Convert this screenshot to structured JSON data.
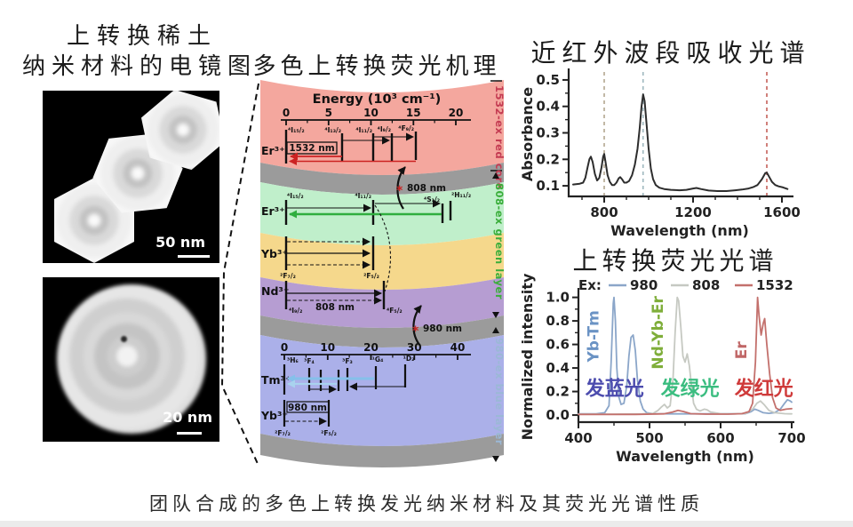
{
  "page": {
    "caption": "团队合成的多色上转换发光纳米材料及其荧光光谱性质"
  },
  "left_panel": {
    "title_line1": "上转换稀土",
    "title_line2": "纳米材料的电镜图",
    "tem_top": {
      "scale_label": "50 nm"
    },
    "tem_bottom": {
      "scale_label": "20 nm"
    }
  },
  "mechanism": {
    "title": "多色上转换荧光机理",
    "energy_axis_label": "Energy (10³ cm⁻¹)",
    "red_ticks": [
      "0",
      "5",
      "10",
      "15",
      "20"
    ],
    "blue_ticks": [
      "0",
      "10",
      "20",
      "30",
      "40"
    ],
    "star": "*",
    "pump_808": "808 nm",
    "pump_980": "980 nm",
    "red": {
      "ion": "Er³⁺",
      "pump": "1532 nm",
      "levels": [
        "⁴I₁₅/₂",
        "⁴I₁₃/₂",
        "⁴I₁₁/₂",
        "⁴I₉/₂",
        "⁴F₉/₂"
      ]
    },
    "green": {
      "ion": "Er³⁺",
      "levels": [
        "⁴I₁₅/₂",
        "⁴I₁₁/₂",
        "⁴S₃/₂",
        "²H₁₁/₂"
      ]
    },
    "yellow": {
      "ion": "Yb³⁺",
      "levels": [
        "²F₇/₂",
        "²F₅/₂"
      ]
    },
    "purple": {
      "ion": "Nd³⁺",
      "pump": "808 nm",
      "levels": [
        "⁴I₉/₂",
        "⁴F₅/₂"
      ]
    },
    "blue": {
      "ion_tm": "Tm³⁺",
      "tm_levels": [
        "³H₆",
        "³F₄",
        "³F₃",
        "¹G₄",
        "¹D₂"
      ],
      "ion_yb": "Yb³⁺",
      "pump": "980 nm",
      "yb_levels": [
        "²F₇/₂",
        "²F₅/₂"
      ]
    },
    "side": {
      "red": "1532-ex red core",
      "green": "808-ex green layer",
      "blue": "980-ex blue layer"
    }
  },
  "chart_data": [
    {
      "type": "line",
      "title": "近红外波段吸收光谱",
      "xlabel": "Wavelength (nm)",
      "ylabel": "Absorbance",
      "xlim": [
        640,
        1640
      ],
      "ylim": [
        0.06,
        0.53
      ],
      "xticks": [
        {
          "v": 800,
          "label": "800"
        },
        {
          "v": 1200,
          "label": "1200"
        },
        {
          "v": 1600,
          "label": "1600"
        }
      ],
      "xminor": [
        700,
        900,
        1000,
        1100,
        1300,
        1400,
        1500
      ],
      "yticks": [
        {
          "v": 0.1,
          "label": "0.1"
        },
        {
          "v": 0.2,
          "label": "0.2"
        },
        {
          "v": 0.3,
          "label": "0.3"
        },
        {
          "v": 0.4,
          "label": "0.4"
        },
        {
          "v": 0.5,
          "label": "0.5"
        }
      ],
      "yminor": [
        0.15,
        0.25,
        0.35,
        0.45
      ],
      "grid": false,
      "legend_position": "none",
      "guides": [
        {
          "x": 800,
          "color": "#b3a68f"
        },
        {
          "x": 975,
          "color": "#9fb8bf"
        },
        {
          "x": 1532,
          "color": "#c4605a"
        }
      ],
      "series": [
        {
          "name": "absorbance",
          "color": "#2d2d2d",
          "width": 2,
          "points": [
            [
              660,
              0.105
            ],
            [
              690,
              0.108
            ],
            [
              705,
              0.112
            ],
            [
              715,
              0.13
            ],
            [
              725,
              0.17
            ],
            [
              733,
              0.2
            ],
            [
              740,
              0.21
            ],
            [
              748,
              0.19
            ],
            [
              758,
              0.145
            ],
            [
              768,
              0.12
            ],
            [
              778,
              0.13
            ],
            [
              788,
              0.17
            ],
            [
              795,
              0.21
            ],
            [
              800,
              0.22
            ],
            [
              806,
              0.19
            ],
            [
              815,
              0.14
            ],
            [
              825,
              0.115
            ],
            [
              835,
              0.103
            ],
            [
              845,
              0.103
            ],
            [
              855,
              0.112
            ],
            [
              865,
              0.128
            ],
            [
              872,
              0.133
            ],
            [
              880,
              0.125
            ],
            [
              890,
              0.112
            ],
            [
              900,
              0.112
            ],
            [
              912,
              0.118
            ],
            [
              925,
              0.14
            ],
            [
              938,
              0.18
            ],
            [
              950,
              0.24
            ],
            [
              960,
              0.32
            ],
            [
              968,
              0.4
            ],
            [
              975,
              0.445
            ],
            [
              982,
              0.42
            ],
            [
              990,
              0.34
            ],
            [
              1000,
              0.24
            ],
            [
              1010,
              0.165
            ],
            [
              1020,
              0.125
            ],
            [
              1032,
              0.103
            ],
            [
              1048,
              0.093
            ],
            [
              1070,
              0.088
            ],
            [
              1100,
              0.085
            ],
            [
              1140,
              0.083
            ],
            [
              1170,
              0.085
            ],
            [
              1200,
              0.09
            ],
            [
              1215,
              0.092
            ],
            [
              1235,
              0.088
            ],
            [
              1270,
              0.082
            ],
            [
              1310,
              0.08
            ],
            [
              1350,
              0.08
            ],
            [
              1390,
              0.083
            ],
            [
              1420,
              0.086
            ],
            [
              1450,
              0.09
            ],
            [
              1470,
              0.095
            ],
            [
              1490,
              0.103
            ],
            [
              1510,
              0.125
            ],
            [
              1525,
              0.148
            ],
            [
              1532,
              0.15
            ],
            [
              1542,
              0.135
            ],
            [
              1555,
              0.115
            ],
            [
              1570,
              0.103
            ],
            [
              1585,
              0.098
            ],
            [
              1605,
              0.094
            ],
            [
              1625,
              0.088
            ]
          ]
        }
      ]
    },
    {
      "type": "line",
      "title": "上转换荧光光谱",
      "xlabel": "Wavelength (nm)",
      "ylabel": "Normalized intensity",
      "xlim": [
        400,
        700
      ],
      "ylim": [
        -0.06,
        1.05
      ],
      "xticks": [
        {
          "v": 400,
          "label": "400"
        },
        {
          "v": 500,
          "label": "500"
        },
        {
          "v": 600,
          "label": "600"
        },
        {
          "v": 700,
          "label": "700"
        }
      ],
      "xminor": [
        450,
        550,
        650
      ],
      "yticks": [
        {
          "v": 0.0,
          "label": "0.0"
        },
        {
          "v": 0.2,
          "label": "0.2"
        },
        {
          "v": 0.4,
          "label": "0.4"
        },
        {
          "v": 0.6,
          "label": "0.6"
        },
        {
          "v": 0.8,
          "label": "0.8"
        },
        {
          "v": 1.0,
          "label": "1.0"
        }
      ],
      "yminor": [
        0.1,
        0.3,
        0.5,
        0.7,
        0.9
      ],
      "grid": false,
      "legend_position": "top",
      "legend": {
        "label": "Ex:",
        "items": [
          {
            "label": "980",
            "color": "#8ba6c9"
          },
          {
            "label": "808",
            "color": "#c6c9c2"
          },
          {
            "label": "1532",
            "color": "#c3706c"
          }
        ]
      },
      "series": [
        {
          "name": "ex-980",
          "color": "#8ba6c9",
          "width": 1.8,
          "points": [
            [
              400,
              0.01
            ],
            [
              425,
              0.01
            ],
            [
              437,
              0.02
            ],
            [
              443,
              0.08
            ],
            [
              446,
              0.45
            ],
            [
              449,
              0.95
            ],
            [
              450,
              1.0
            ],
            [
              452,
              0.8
            ],
            [
              454,
              0.4
            ],
            [
              457,
              0.15
            ],
            [
              460,
              0.09
            ],
            [
              464,
              0.1
            ],
            [
              468,
              0.25
            ],
            [
              471,
              0.5
            ],
            [
              474,
              0.66
            ],
            [
              477,
              0.68
            ],
            [
              480,
              0.55
            ],
            [
              483,
              0.3
            ],
            [
              487,
              0.12
            ],
            [
              491,
              0.05
            ],
            [
              496,
              0.02
            ],
            [
              505,
              0.012
            ],
            [
              530,
              0.01
            ],
            [
              570,
              0.01
            ],
            [
              610,
              0.01
            ],
            [
              635,
              0.012
            ],
            [
              643,
              0.03
            ],
            [
              648,
              0.05
            ],
            [
              653,
              0.04
            ],
            [
              660,
              0.02
            ],
            [
              668,
              0.015
            ],
            [
              676,
              0.02
            ],
            [
              684,
              0.05
            ],
            [
              690,
              0.1
            ],
            [
              694,
              0.13
            ],
            [
              698,
              0.12
            ],
            [
              700,
              0.11
            ]
          ]
        },
        {
          "name": "ex-808",
          "color": "#c6c9c2",
          "width": 1.8,
          "points": [
            [
              400,
              0.008
            ],
            [
              450,
              0.008
            ],
            [
              490,
              0.01
            ],
            [
              505,
              0.015
            ],
            [
              512,
              0.04
            ],
            [
              517,
              0.07
            ],
            [
              521,
              0.09
            ],
            [
              525,
              0.06
            ],
            [
              529,
              0.08
            ],
            [
              533,
              0.3
            ],
            [
              536,
              0.7
            ],
            [
              539,
              1.0
            ],
            [
              541,
              0.97
            ],
            [
              544,
              0.75
            ],
            [
              547,
              0.5
            ],
            [
              550,
              0.45
            ],
            [
              553,
              0.52
            ],
            [
              556,
              0.42
            ],
            [
              559,
              0.25
            ],
            [
              562,
              0.1
            ],
            [
              566,
              0.05
            ],
            [
              571,
              0.035
            ],
            [
              577,
              0.05
            ],
            [
              581,
              0.045
            ],
            [
              586,
              0.025
            ],
            [
              600,
              0.012
            ],
            [
              620,
              0.01
            ],
            [
              636,
              0.015
            ],
            [
              645,
              0.05
            ],
            [
              651,
              0.1
            ],
            [
              656,
              0.12
            ],
            [
              661,
              0.09
            ],
            [
              668,
              0.04
            ],
            [
              676,
              0.02
            ],
            [
              690,
              0.012
            ],
            [
              700,
              0.01
            ]
          ]
        },
        {
          "name": "ex-1532",
          "color": "#c3706c",
          "width": 1.8,
          "points": [
            [
              400,
              0.006
            ],
            [
              480,
              0.006
            ],
            [
              520,
              0.01
            ],
            [
              532,
              0.025
            ],
            [
              540,
              0.04
            ],
            [
              548,
              0.03
            ],
            [
              558,
              0.012
            ],
            [
              580,
              0.008
            ],
            [
              610,
              0.008
            ],
            [
              630,
              0.012
            ],
            [
              640,
              0.03
            ],
            [
              645,
              0.1
            ],
            [
              649,
              0.45
            ],
            [
              652,
              1.0
            ],
            [
              654,
              0.85
            ],
            [
              657,
              0.68
            ],
            [
              660,
              0.78
            ],
            [
              662,
              0.82
            ],
            [
              665,
              0.6
            ],
            [
              669,
              0.35
            ],
            [
              673,
              0.15
            ],
            [
              678,
              0.06
            ],
            [
              684,
              0.04
            ],
            [
              692,
              0.05
            ],
            [
              700,
              0.055
            ]
          ]
        }
      ],
      "annotations": [
        {
          "text": "Yb-Tm",
          "x": 428,
          "y": 0.67,
          "color": "#6b93c4",
          "rotate": -90,
          "size": 17
        },
        {
          "text": "Nd-Yb-Er",
          "x": 519,
          "y": 0.7,
          "color": "#7fae3a",
          "rotate": -90,
          "size": 17
        },
        {
          "text": "Er",
          "x": 636,
          "y": 0.55,
          "color": "#c06666",
          "rotate": -90,
          "size": 17
        },
        {
          "text": "发蓝光",
          "x": 451,
          "y": 0.17,
          "color": "#4c4cae",
          "size": 22
        },
        {
          "text": "发绿光",
          "x": 557,
          "y": 0.17,
          "color": "#3bbd80",
          "size": 22
        },
        {
          "text": "发红光",
          "x": 661,
          "y": 0.17,
          "color": "#cf3a3a",
          "size": 22
        }
      ]
    }
  ]
}
